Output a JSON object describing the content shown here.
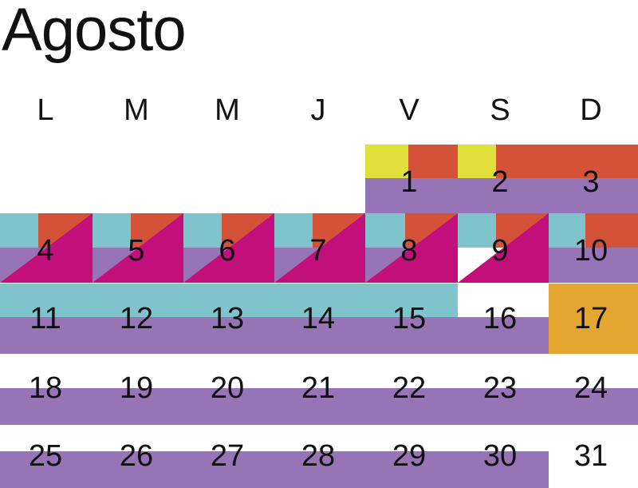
{
  "title": "Agosto",
  "weekdays": [
    "L",
    "M",
    "M",
    "J",
    "V",
    "S",
    "D"
  ],
  "weeks": [
    [
      "",
      "",
      "",
      "",
      "1",
      "2",
      "3"
    ],
    [
      "4",
      "5",
      "6",
      "7",
      "8",
      "9",
      "10"
    ],
    [
      "11",
      "12",
      "13",
      "14",
      "15",
      "16",
      "17"
    ],
    [
      "18",
      "19",
      "20",
      "21",
      "22",
      "23",
      "24"
    ],
    [
      "25",
      "26",
      "27",
      "28",
      "29",
      "30",
      "31"
    ]
  ],
  "colors": {
    "purple": "#9674B5",
    "cyan": "#7FC4CD",
    "orange_red": "#D35238",
    "yellow": "#DFE03C",
    "magenta": "#C30F7C",
    "gold": "#E5A531"
  }
}
